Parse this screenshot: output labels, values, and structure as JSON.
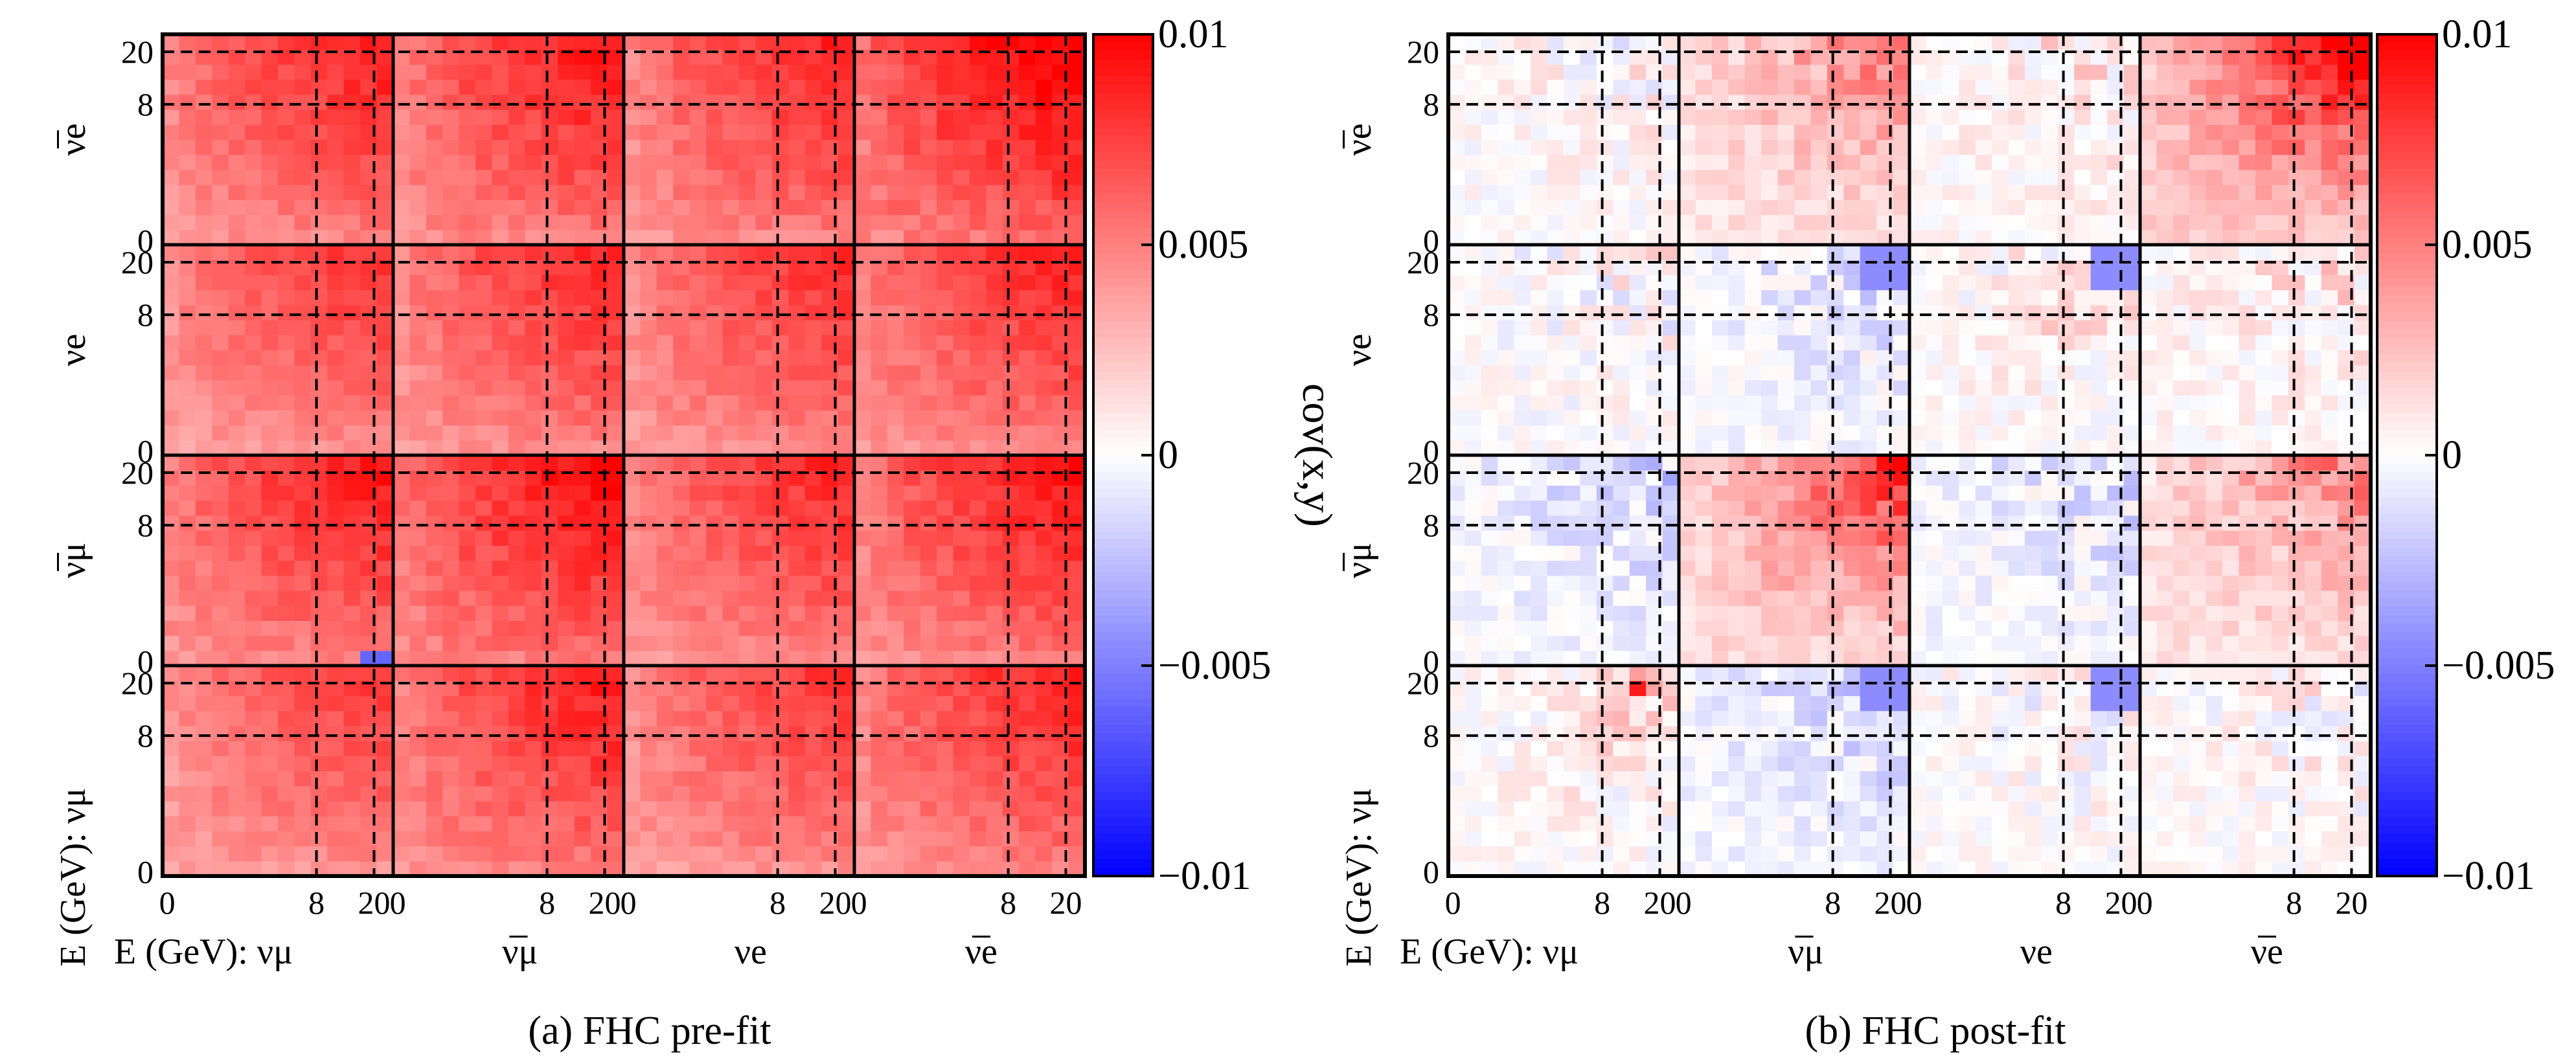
{
  "figure": {
    "colors": {
      "negative": "#0000ff",
      "zero": "#ffffff",
      "positive": "#ff0000"
    }
  },
  "colorbar": {
    "label": "cov(x,y)",
    "range": [
      -0.01,
      0.01
    ],
    "ticks": [
      "0.01",
      "0.005",
      "0",
      "−0.005",
      "−0.01"
    ]
  },
  "chart_data": [
    {
      "type": "heatmap",
      "panel": "a",
      "caption_letter": "(a)",
      "caption_text": " FHC pre-fit",
      "row_axis_title": "E (GeV): νμ",
      "col_axis_title": "E (GeV): νμ",
      "blocks": [
        "νμ",
        "ν̅μ",
        "νe",
        "ν̅e"
      ],
      "block_row_labels_top_to_bottom": [
        "ν̅e",
        "νe",
        "ν̅μ",
        "E (GeV): νμ"
      ],
      "block_col_labels_left_to_right": [
        "E (GeV): νμ",
        "ν̅μ",
        "νe",
        "ν̅e"
      ],
      "energy_ticks": [
        "0",
        "8",
        "20"
      ],
      "energy_range_gev": [
        0,
        25
      ],
      "dashed_energy_lines_gev": [
        8,
        20
      ],
      "colorbar_range": [
        -0.01,
        0.01
      ],
      "block_mean_cov": [
        [
          0.0062,
          0.0072,
          0.0064,
          0.007
        ],
        [
          0.0072,
          0.0078,
          0.0068,
          0.0074
        ],
        [
          0.0064,
          0.0068,
          0.0066,
          0.007
        ],
        [
          0.007,
          0.0074,
          0.007,
          0.0082
        ]
      ]
    },
    {
      "type": "heatmap",
      "panel": "b",
      "caption_letter": "(b)",
      "caption_text": " FHC post-fit",
      "row_axis_title": "E (GeV): νμ",
      "col_axis_title": "E (GeV): νμ",
      "blocks": [
        "νμ",
        "ν̅μ",
        "νe",
        "ν̅e"
      ],
      "block_row_labels_top_to_bottom": [
        "ν̅e",
        "νe",
        "ν̅μ",
        "E (GeV): νμ"
      ],
      "block_col_labels_left_to_right": [
        "E (GeV): νμ",
        "ν̅μ",
        "νe",
        "ν̅e"
      ],
      "energy_ticks": [
        "0",
        "8",
        "20"
      ],
      "energy_range_gev": [
        0,
        25
      ],
      "dashed_energy_lines_gev": [
        8,
        20
      ],
      "colorbar_range": [
        -0.01,
        0.01
      ],
      "block_mean_cov": [
        [
          0.0002,
          -0.001,
          0.0001,
          0.0003
        ],
        [
          -0.001,
          0.004,
          -0.0008,
          0.003
        ],
        [
          0.0001,
          -0.0008,
          0.0003,
          0.0008
        ],
        [
          0.0003,
          0.003,
          0.0008,
          0.0055
        ]
      ]
    }
  ]
}
